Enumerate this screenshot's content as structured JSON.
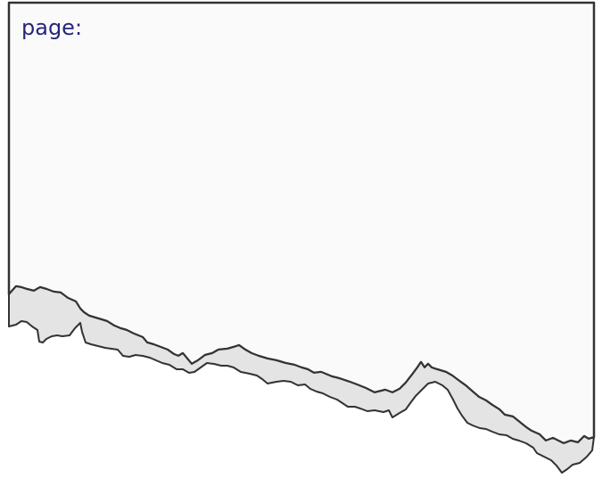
{
  "label": "page:"
}
